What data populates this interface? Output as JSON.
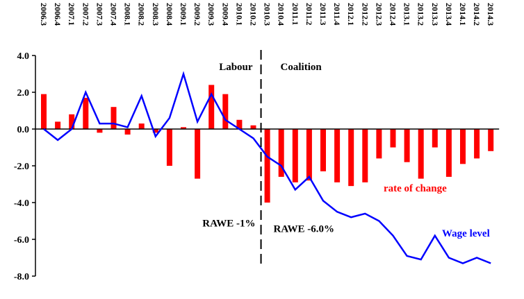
{
  "chart_data": {
    "type": "bar+line",
    "categories": [
      "2006.3",
      "2006.4",
      "2007.1",
      "2007.2",
      "2007.3",
      "2007.4",
      "2008.1",
      "2008.2",
      "2008.3",
      "2008.4",
      "2009.1",
      "2009.2",
      "2009.3",
      "2009.4",
      "2010.1",
      "2010.2",
      "2010.3",
      "2010.4",
      "2011.1",
      "2011.2",
      "2011.3",
      "2011.4",
      "2012.1",
      "2012.2",
      "2012.3",
      "2012.4",
      "2013.1",
      "2013.2",
      "2013.3",
      "2013.4",
      "2014.1",
      "2014.2",
      "2014.3"
    ],
    "xtick_labels": [
      "2006.3",
      "2006.4",
      "2007.1",
      "2007.2",
      "2007.3",
      "2007.4",
      "2008.1",
      "2008.2",
      "2008.3",
      "2008.4",
      "2009.1",
      "2009.2",
      "2009.3",
      "2009.4",
      "2010.1",
      "2010.2",
      "2010.3",
      "2010.4",
      "2011.1",
      "2011.2",
      "2011.3",
      "2011.4",
      "2012.1",
      "2012.2",
      "2012.3",
      "2012.4",
      "2013.1",
      "2013.2",
      "2013.3",
      "2013.4",
      "2014.1",
      "2014.2",
      "2014.3"
    ],
    "series": [
      {
        "name": "rate of change",
        "kind": "bar",
        "color": "#ff0000",
        "values": [
          1.9,
          0.4,
          0.8,
          1.7,
          -0.2,
          1.2,
          -0.3,
          0.3,
          -0.2,
          -2.0,
          0.1,
          -2.7,
          2.4,
          1.9,
          0.5,
          0.2,
          -4.0,
          -2.6,
          -2.9,
          -2.8,
          -2.3,
          -2.9,
          -3.1,
          -2.9,
          -1.6,
          -1.0,
          -1.8,
          -2.7,
          -1.0,
          -2.6,
          -1.9,
          -1.6,
          -1.2
        ]
      },
      {
        "name": "Wage level",
        "kind": "line",
        "color": "#0000ff",
        "values": [
          0.0,
          -0.6,
          0.0,
          2.0,
          0.3,
          0.3,
          0.1,
          1.8,
          -0.4,
          0.6,
          3.0,
          0.4,
          1.9,
          0.5,
          0.0,
          -0.5,
          -1.5,
          -2.0,
          -3.3,
          -2.6,
          -3.9,
          -4.5,
          -4.8,
          -4.6,
          -5.0,
          -5.8,
          -6.9,
          -7.1,
          -5.8,
          -7.0,
          -7.3,
          -7.0,
          -7.3
        ]
      }
    ],
    "yticks": [
      "4.0",
      "2.0",
      "0.0",
      "-2.0",
      "-4.0",
      "-6.0",
      "-8.0"
    ],
    "ytick_values": [
      4,
      2,
      0,
      -2,
      -4,
      -6,
      -8
    ],
    "ylim": [
      -8,
      4
    ],
    "divider_after_category": "2010.2",
    "annotations": {
      "labour": "Labour",
      "coalition": "Coalition",
      "rawe_labour": "RAWE -1%",
      "rawe_coalition": "RAWE -6.0%",
      "rate_label": "rate of change",
      "wage_label": "Wage level"
    },
    "grid": false,
    "legend": "none"
  },
  "colors": {
    "bar": "#ff0000",
    "line": "#0000ff",
    "axis": "#000000"
  }
}
